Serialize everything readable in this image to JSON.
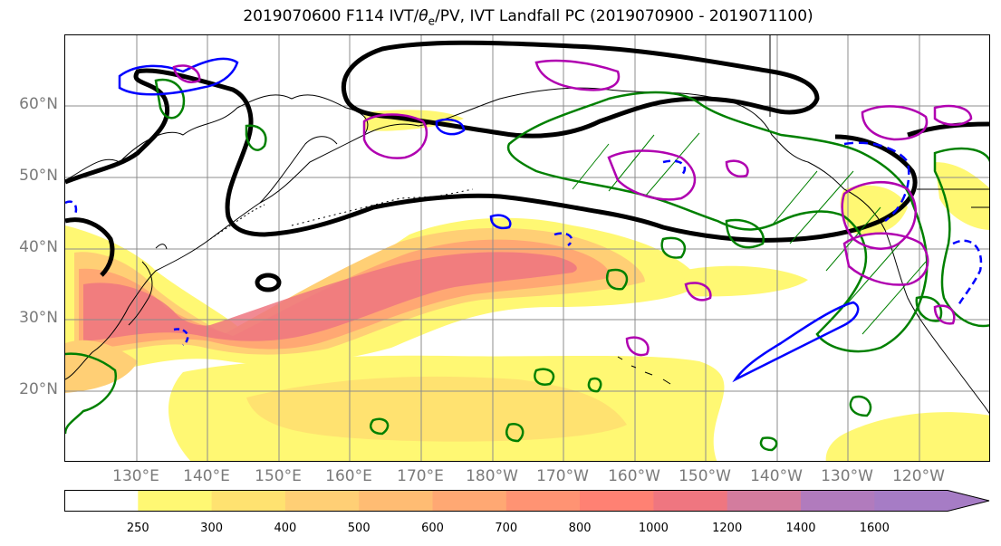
{
  "title": {
    "prefix": "2019070600 F114 IVT/",
    "theta": "θ",
    "theta_sub": "e",
    "suffix": "/PV, IVT Landfall PC (2019070900 - 2019071100)"
  },
  "lat_labels": [
    "60°N",
    "50°N",
    "40°N",
    "30°N",
    "20°N"
  ],
  "lon_labels": [
    "130°E",
    "140°E",
    "150°E",
    "160°E",
    "170°E",
    "180°W",
    "170°W",
    "160°W",
    "150°W",
    "140°W",
    "130°W",
    "120°W"
  ],
  "colorbar": {
    "ticks": [
      "250",
      "300",
      "400",
      "500",
      "600",
      "700",
      "800",
      "1000",
      "1200",
      "1400",
      "1600"
    ],
    "colors": [
      "#ffffff",
      "#fff873",
      "#ffe270",
      "#ffcf75",
      "#ffbc73",
      "#ffa873",
      "#ff9373",
      "#ff8173",
      "#ef7680",
      "#d37c9e",
      "#b17bbd",
      "#a67cc5"
    ]
  },
  "map": {
    "extent": "120°E - 110°W, 10°N - 70°N",
    "gridlines": true,
    "contour_colors": {
      "ivt_fill": "#ff9f73",
      "black_thick": "#000000",
      "green": "#008000",
      "blue": "#0000ff",
      "magenta": "#b000b0"
    }
  }
}
